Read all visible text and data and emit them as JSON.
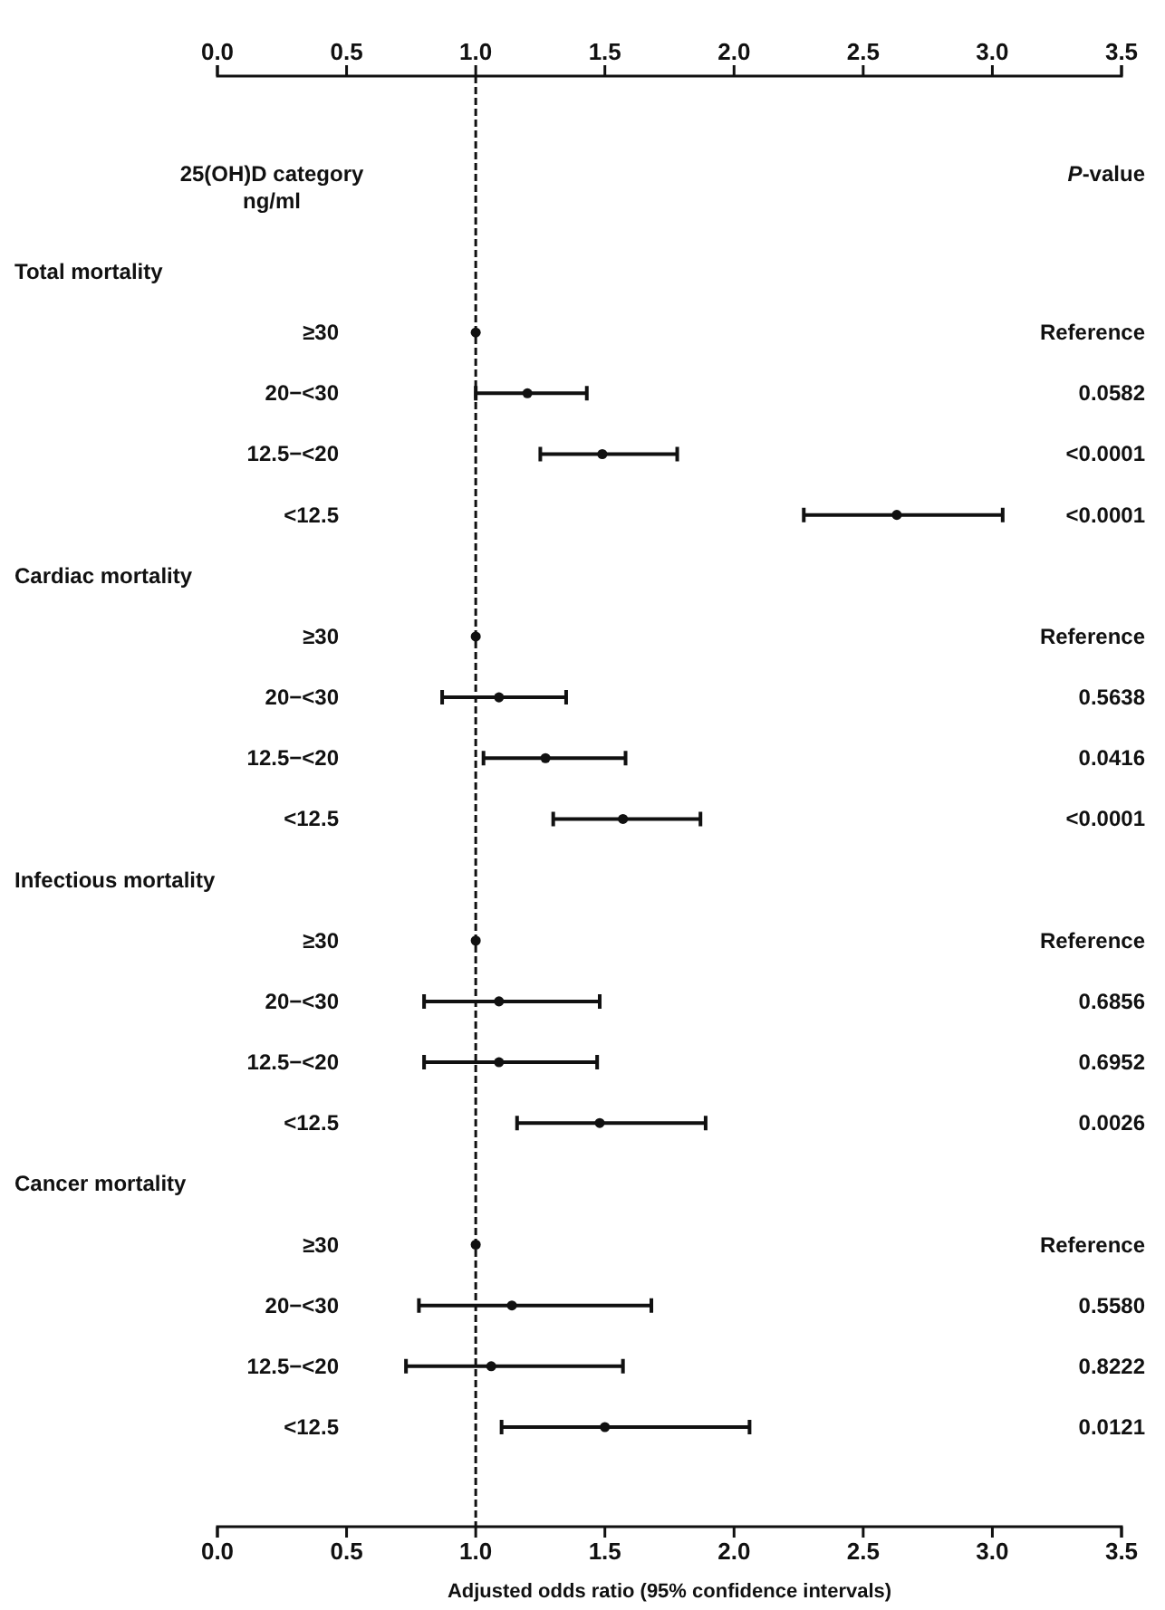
{
  "chart_data": {
    "type": "scatter",
    "orientation": "horizontal",
    "marker": "circle",
    "xlabel": "Adjusted odds ratio (95% confidence intervals)",
    "ylabel": "25(OH)D category\nng/ml",
    "y2label": "P-value",
    "categories": [
      null,
      "≥30",
      "20−<30",
      "12.5−<20",
      "<12.5",
      null,
      "≥30",
      "20−<30",
      "12.5−<20",
      "<12.5",
      null,
      "≥30",
      "20−<30",
      "12.5−<20",
      "<12.5",
      null,
      "≥30",
      "20−<30",
      "12.5−<20",
      "<12.5"
    ],
    "values": [
      null,
      1.0,
      1.2,
      1.49,
      2.63,
      null,
      1.0,
      1.09,
      1.27,
      1.57,
      null,
      1.0,
      1.09,
      1.09,
      1.48,
      null,
      1.0,
      1.14,
      1.06,
      1.5
    ],
    "errors": [
      null,
      null,
      [
        1.0,
        1.43
      ],
      [
        1.25,
        1.78
      ],
      [
        2.27,
        3.04
      ],
      null,
      null,
      [
        0.87,
        1.35
      ],
      [
        1.03,
        1.58
      ],
      [
        1.3,
        1.87
      ],
      null,
      null,
      [
        0.8,
        1.48
      ],
      [
        0.8,
        1.47
      ],
      [
        1.16,
        1.89
      ],
      null,
      null,
      [
        0.78,
        1.68
      ],
      [
        0.73,
        1.57
      ],
      [
        1.1,
        2.06
      ]
    ],
    "annotations": [
      "Total mortality",
      "Reference",
      "0.0582",
      "<0.0001",
      "<0.0001",
      "Cardiac mortality",
      "Reference",
      "0.5638",
      "0.0416",
      "<0.0001",
      "Infectious mortality",
      "Reference",
      "0.6856",
      "0.6952",
      "0.0026",
      "Cancer mortality",
      "Reference",
      "0.5580",
      "0.8222",
      "0.0121"
    ],
    "xlim": [
      0,
      3.5
    ],
    "xticks": [
      {
        "value": 0,
        "label": "0.0"
      },
      {
        "value": 0.5,
        "label": "0.5"
      },
      {
        "value": 1,
        "label": "1.0"
      },
      {
        "value": 1.5,
        "label": "1.5"
      },
      {
        "value": 2,
        "label": "2.0"
      },
      {
        "value": 2.5,
        "label": "2.5"
      },
      {
        "value": 3,
        "label": "3.0"
      },
      {
        "value": 3.5,
        "label": "3.5"
      }
    ],
    "x2lim": [
      0,
      3.5
    ],
    "x2ticks": [
      {
        "value": 0,
        "label": "0.0"
      },
      {
        "value": 0.5,
        "label": "0.5"
      },
      {
        "value": 1,
        "label": "1.0"
      },
      {
        "value": 1.5,
        "label": "1.5"
      },
      {
        "value": 2,
        "label": "2.0"
      },
      {
        "value": 2.5,
        "label": "2.5"
      },
      {
        "value": 3,
        "label": "3.0"
      },
      {
        "value": 3.5,
        "label": "3.5"
      }
    ],
    "ref_lines": [
      {
        "axis": "x",
        "value": 1,
        "line_style": "dashed"
      }
    ],
    "grid": false
  }
}
